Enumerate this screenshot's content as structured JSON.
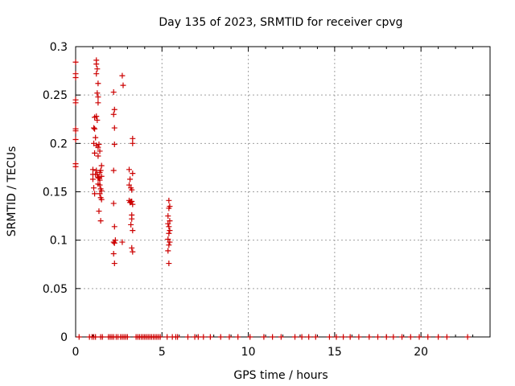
{
  "chart_data": {
    "type": "scatter",
    "title": "Day 135 of 2023, SRMTID for receiver cpvg",
    "xlabel": "GPS time / hours",
    "ylabel": "SRMTID / TECUs",
    "xlim": [
      0,
      24
    ],
    "ylim": [
      0,
      0.3
    ],
    "xticks": [
      0,
      5,
      10,
      15,
      20
    ],
    "yticks": [
      0,
      0.05,
      0.1,
      0.15,
      0.2,
      0.25,
      0.3
    ],
    "ytick_labels": [
      "0",
      "0.05",
      "0.1",
      "0.15",
      "0.2",
      "0.25",
      "0.3"
    ],
    "grid": true,
    "marker": "+",
    "marker_color": "#cc0000",
    "series": [
      {
        "name": "SRMTID",
        "points": [
          [
            0.0,
            0.284
          ],
          [
            0.0,
            0.272
          ],
          [
            0.0,
            0.268
          ],
          [
            0.0,
            0.245
          ],
          [
            0.0,
            0.242
          ],
          [
            0.0,
            0.215
          ],
          [
            0.0,
            0.213
          ],
          [
            0.0,
            0.204
          ],
          [
            0.0,
            0.179
          ],
          [
            0.0,
            0.176
          ],
          [
            1.0,
            0.173
          ],
          [
            1.0,
            0.168
          ],
          [
            1.0,
            0.163
          ],
          [
            1.05,
            0.154
          ],
          [
            1.1,
            0.148
          ],
          [
            1.05,
            0.2
          ],
          [
            1.1,
            0.19
          ],
          [
            1.05,
            0.216
          ],
          [
            1.1,
            0.215
          ],
          [
            1.1,
            0.227
          ],
          [
            1.2,
            0.286
          ],
          [
            1.2,
            0.282
          ],
          [
            1.25,
            0.277
          ],
          [
            1.2,
            0.272
          ],
          [
            1.3,
            0.262
          ],
          [
            1.25,
            0.252
          ],
          [
            1.3,
            0.248
          ],
          [
            1.3,
            0.242
          ],
          [
            1.2,
            0.228
          ],
          [
            1.25,
            0.224
          ],
          [
            1.15,
            0.206
          ],
          [
            1.2,
            0.198
          ],
          [
            1.3,
            0.196
          ],
          [
            1.35,
            0.199
          ],
          [
            1.3,
            0.187
          ],
          [
            1.4,
            0.192
          ],
          [
            1.2,
            0.172
          ],
          [
            1.25,
            0.168
          ],
          [
            1.3,
            0.165
          ],
          [
            1.35,
            0.164
          ],
          [
            1.4,
            0.17
          ],
          [
            1.45,
            0.172
          ],
          [
            1.4,
            0.162
          ],
          [
            1.4,
            0.157
          ],
          [
            1.45,
            0.153
          ],
          [
            1.5,
            0.151
          ],
          [
            1.4,
            0.148
          ],
          [
            1.45,
            0.144
          ],
          [
            1.5,
            0.142
          ],
          [
            1.5,
            0.177
          ],
          [
            1.35,
            0.13
          ],
          [
            1.45,
            0.12
          ],
          [
            1.5,
            0.166
          ],
          [
            1.3,
            0.158
          ],
          [
            1.15,
            0.168
          ],
          [
            2.2,
            0.253
          ],
          [
            2.25,
            0.235
          ],
          [
            2.2,
            0.23
          ],
          [
            2.25,
            0.216
          ],
          [
            2.25,
            0.199
          ],
          [
            2.2,
            0.172
          ],
          [
            2.2,
            0.138
          ],
          [
            2.25,
            0.114
          ],
          [
            2.2,
            0.098
          ],
          [
            2.25,
            0.097
          ],
          [
            2.3,
            0.1
          ],
          [
            2.2,
            0.086
          ],
          [
            2.25,
            0.076
          ],
          [
            2.7,
            0.27
          ],
          [
            2.75,
            0.26
          ],
          [
            2.7,
            0.098
          ],
          [
            3.1,
            0.173
          ],
          [
            3.15,
            0.163
          ],
          [
            3.1,
            0.157
          ],
          [
            3.2,
            0.154
          ],
          [
            3.25,
            0.152
          ],
          [
            3.3,
            0.169
          ],
          [
            3.3,
            0.205
          ],
          [
            3.3,
            0.2
          ],
          [
            3.2,
            0.14
          ],
          [
            3.25,
            0.14
          ],
          [
            3.15,
            0.139
          ],
          [
            3.3,
            0.137
          ],
          [
            3.25,
            0.126
          ],
          [
            3.25,
            0.122
          ],
          [
            3.2,
            0.116
          ],
          [
            3.3,
            0.11
          ],
          [
            3.25,
            0.092
          ],
          [
            3.3,
            0.088
          ],
          [
            3.1,
            0.141
          ],
          [
            5.4,
            0.141
          ],
          [
            5.45,
            0.135
          ],
          [
            5.4,
            0.133
          ],
          [
            5.35,
            0.125
          ],
          [
            5.45,
            0.12
          ],
          [
            5.35,
            0.117
          ],
          [
            5.4,
            0.114
          ],
          [
            5.45,
            0.11
          ],
          [
            5.4,
            0.107
          ],
          [
            5.35,
            0.101
          ],
          [
            5.45,
            0.098
          ],
          [
            5.4,
            0.095
          ],
          [
            5.35,
            0.089
          ],
          [
            5.4,
            0.076
          ],
          [
            0.2,
            0.0
          ],
          [
            0.8,
            0.0
          ],
          [
            0.95,
            0.0
          ],
          [
            1.05,
            0.0
          ],
          [
            1.15,
            0.0
          ],
          [
            1.45,
            0.0
          ],
          [
            1.55,
            0.0
          ],
          [
            1.9,
            0.0
          ],
          [
            2.0,
            0.0
          ],
          [
            2.1,
            0.0
          ],
          [
            2.2,
            0.0
          ],
          [
            2.35,
            0.0
          ],
          [
            2.45,
            0.0
          ],
          [
            2.6,
            0.0
          ],
          [
            2.7,
            0.0
          ],
          [
            2.8,
            0.0
          ],
          [
            2.9,
            0.0
          ],
          [
            3.0,
            0.0
          ],
          [
            3.5,
            0.0
          ],
          [
            3.6,
            0.0
          ],
          [
            3.7,
            0.0
          ],
          [
            3.8,
            0.0
          ],
          [
            3.9,
            0.0
          ],
          [
            4.0,
            0.0
          ],
          [
            4.1,
            0.0
          ],
          [
            4.2,
            0.0
          ],
          [
            4.3,
            0.0
          ],
          [
            4.4,
            0.0
          ],
          [
            4.5,
            0.0
          ],
          [
            4.6,
            0.0
          ],
          [
            4.7,
            0.0
          ],
          [
            4.8,
            0.0
          ],
          [
            4.9,
            0.0
          ],
          [
            5.3,
            0.0
          ],
          [
            5.6,
            0.0
          ],
          [
            5.8,
            0.0
          ],
          [
            5.9,
            0.0
          ],
          [
            6.5,
            0.0
          ],
          [
            6.9,
            0.0
          ],
          [
            7.1,
            0.0
          ],
          [
            7.4,
            0.0
          ],
          [
            7.8,
            0.0
          ],
          [
            8.4,
            0.0
          ],
          [
            8.9,
            0.0
          ],
          [
            9.4,
            0.0
          ],
          [
            10.1,
            0.0
          ],
          [
            10.9,
            0.0
          ],
          [
            11.4,
            0.0
          ],
          [
            11.9,
            0.0
          ],
          [
            12.7,
            0.0
          ],
          [
            13.1,
            0.0
          ],
          [
            13.5,
            0.0
          ],
          [
            13.9,
            0.0
          ],
          [
            14.7,
            0.0
          ],
          [
            15.1,
            0.0
          ],
          [
            15.5,
            0.0
          ],
          [
            15.9,
            0.0
          ],
          [
            16.4,
            0.0
          ],
          [
            17.0,
            0.0
          ],
          [
            17.5,
            0.0
          ],
          [
            18.0,
            0.0
          ],
          [
            18.4,
            0.0
          ],
          [
            18.9,
            0.0
          ],
          [
            19.4,
            0.0
          ],
          [
            19.9,
            0.0
          ],
          [
            20.4,
            0.0
          ],
          [
            21.0,
            0.0
          ],
          [
            21.5,
            0.0
          ],
          [
            22.7,
            0.0
          ]
        ]
      }
    ]
  }
}
